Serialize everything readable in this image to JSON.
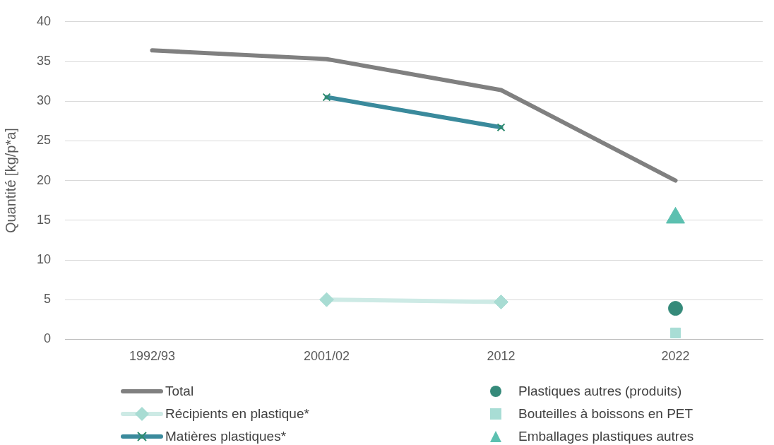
{
  "chart_data": {
    "type": "line",
    "ylabel": "Quantité [kg/p*a]",
    "categories": [
      "1992/93",
      "2001/02",
      "2012",
      "2022"
    ],
    "ylim": [
      0,
      40
    ],
    "yticks": [
      0,
      5,
      10,
      15,
      20,
      25,
      30,
      35,
      40
    ],
    "grid": "y",
    "legend": "bottom",
    "series": [
      {
        "name": "Total",
        "marker": "none",
        "color": "#808080",
        "values": [
          36.4,
          35.3,
          31.4,
          20.0
        ]
      },
      {
        "name": "Récipients en plastique*",
        "marker": "diamond",
        "color": "#cdeae5",
        "values": [
          null,
          5.0,
          4.7,
          null
        ]
      },
      {
        "name": "Matières plastiques*",
        "marker": "cross",
        "color": "#3a8a9c",
        "values": [
          null,
          30.5,
          26.7,
          null
        ]
      },
      {
        "name": "Plastiques autres (produits)",
        "type": "scatter",
        "marker": "circle",
        "color": "#358a7a",
        "values": [
          null,
          null,
          null,
          3.9
        ]
      },
      {
        "name": "Bouteilles à boissons en PET",
        "type": "scatter",
        "marker": "square",
        "color": "#a8ddd5",
        "values": [
          null,
          null,
          null,
          0.8
        ]
      },
      {
        "name": "Emballages plastiques autres",
        "type": "scatter",
        "marker": "triangle",
        "color": "#5cc0b0",
        "values": [
          null,
          null,
          null,
          15.3
        ]
      }
    ]
  }
}
